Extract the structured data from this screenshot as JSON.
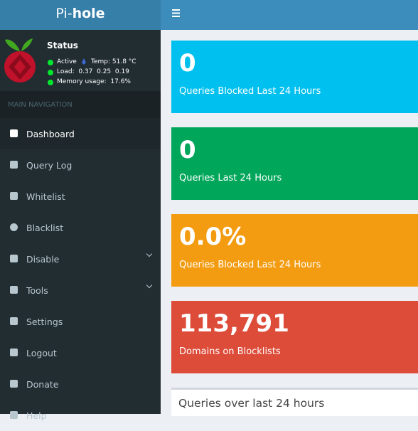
{
  "header": {
    "logo_light": "Pi-",
    "logo_bold": "hole"
  },
  "status": {
    "title": "Status",
    "active": "Active",
    "temp": "Temp: 51.8 °C",
    "load": "Load:  0.37  0.25  0.19",
    "memory": "Memory usage:  17.6%"
  },
  "navigation": {
    "header": "MAIN NAVIGATION",
    "items": [
      "Dashboard",
      "Query Log",
      "Whitelist",
      "Blacklist",
      "Disable",
      "Tools",
      "Settings",
      "Logout",
      "Donate",
      "Help"
    ]
  },
  "stats": [
    {
      "value": "0",
      "label": "Queries Blocked Last 24 Hours"
    },
    {
      "value": "0",
      "label": "Queries Last 24 Hours"
    },
    {
      "value": "0.0%",
      "label": "Queries Blocked Last 24 Hours"
    },
    {
      "value": "113,791",
      "label": "Domains on Blocklists"
    }
  ],
  "panel": {
    "title": "Queries over last 24 hours"
  }
}
